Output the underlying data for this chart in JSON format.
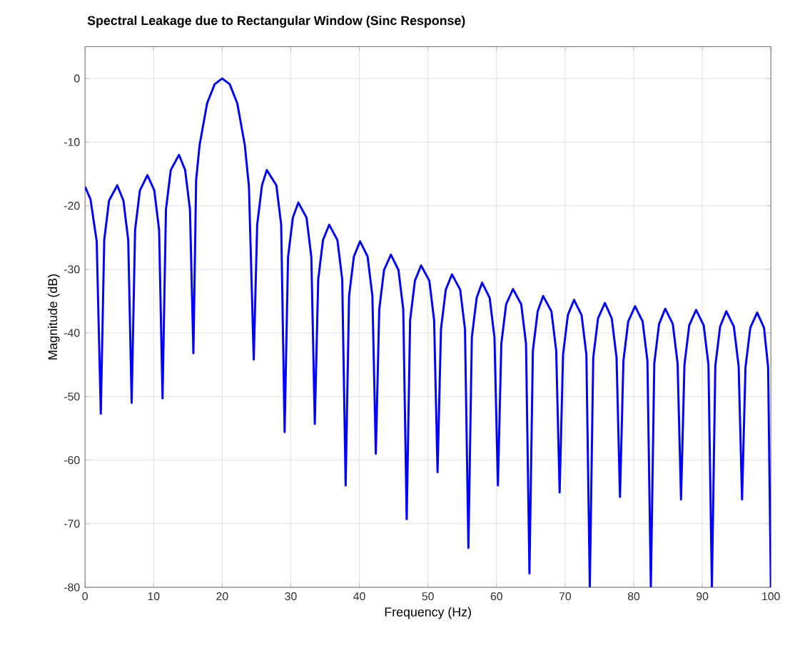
{
  "chart_data": {
    "type": "line",
    "title": "Spectral Leakage due to Rectangular Window (Sinc Response)",
    "xlabel": "Frequency (Hz)",
    "ylabel": "Magnitude (dB)",
    "xlim": [
      0,
      100
    ],
    "ylim": [
      -80,
      5
    ],
    "xticks": [
      0,
      10,
      20,
      30,
      40,
      50,
      60,
      70,
      80,
      90,
      100
    ],
    "yticks": [
      -80,
      -70,
      -60,
      -50,
      -40,
      -30,
      -20,
      -10,
      0
    ],
    "grid": true,
    "line_style": "solid",
    "series": [
      {
        "color": "#0000ff",
        "x": [
          0,
          0.8,
          1.7,
          2.3,
          2.8,
          3.5,
          4.7,
          5.6,
          6.3,
          6.8,
          7.3,
          8.0,
          9.1,
          10.1,
          10.8,
          11.3,
          11.8,
          12.5,
          13.7,
          14.6,
          15.3,
          15.8,
          16.2,
          16.7,
          17.8,
          18.9,
          20,
          21.1,
          22.2,
          23.3,
          23.9,
          24.6,
          25.1,
          25.8,
          26.5,
          27.9,
          28.6,
          29.1,
          29.6,
          30.3,
          31.1,
          32.3,
          33.0,
          33.5,
          34.0,
          34.7,
          35.6,
          36.8,
          37.5,
          38,
          38.5,
          39.2,
          40.1,
          41.2,
          41.9,
          42.4,
          42.9,
          43.6,
          44.6,
          45.7,
          46.4,
          46.9,
          47.4,
          48.1,
          49.0,
          50.2,
          50.9,
          51.4,
          51.9,
          52.6,
          53.5,
          54.7,
          55.4,
          55.9,
          56.4,
          57.1,
          57.9,
          59.0,
          59.7,
          60.2,
          60.7,
          61.4,
          62.4,
          63.6,
          64.3,
          64.8,
          65.3,
          66.0,
          66.8,
          68.0,
          68.7,
          69.2,
          69.7,
          70.4,
          71.3,
          72.4,
          73.1,
          73.6,
          74.1,
          74.8,
          75.8,
          76.8,
          77.5,
          78,
          78.5,
          79.2,
          80.2,
          81.3,
          82.0,
          82.5,
          83.0,
          83.7,
          84.6,
          85.7,
          86.4,
          86.9,
          87.4,
          88.1,
          89.1,
          90.2,
          90.9,
          91.4,
          91.9,
          92.6,
          93.5,
          94.6,
          95.3,
          95.8,
          96.3,
          97.0,
          98.0,
          99.0,
          99.6,
          100
        ],
        "values": [
          -17,
          -19,
          -25.6,
          -52.7,
          -25.4,
          -19.2,
          -16.8,
          -19.2,
          -25.4,
          -51,
          -23.8,
          -17.6,
          -15.2,
          -17.6,
          -23.8,
          -50.3,
          -20.6,
          -14.4,
          -12,
          -14.4,
          -20.6,
          -43.2,
          -16,
          -10.5,
          -3.9,
          -0.9,
          0,
          -0.9,
          -3.9,
          -10.5,
          -17,
          -44.2,
          -23,
          -16.8,
          -14.4,
          -16.8,
          -23,
          -55.6,
          -28.1,
          -21.9,
          -19.5,
          -21.9,
          -28.1,
          -54.3,
          -31.6,
          -25.4,
          -23,
          -25.4,
          -31.6,
          -64,
          -34.2,
          -28,
          -25.6,
          -28,
          -34.2,
          -59,
          -36.3,
          -30.1,
          -27.7,
          -30.1,
          -36.3,
          -69.3,
          -38,
          -31.8,
          -29.4,
          -31.8,
          -38,
          -61.9,
          -39.4,
          -33.2,
          -30.8,
          -33.2,
          -39.4,
          -73.8,
          -40.7,
          -34.5,
          -32.1,
          -34.5,
          -40.7,
          -64,
          -41.7,
          -35.5,
          -33.1,
          -35.5,
          -41.7,
          -77.8,
          -42.8,
          -36.6,
          -34.2,
          -36.6,
          -42.8,
          -65.1,
          -43.4,
          -37.2,
          -34.8,
          -37.2,
          -43.4,
          -80,
          -43.9,
          -37.7,
          -35.3,
          -37.7,
          -43.9,
          -65.8,
          -44.4,
          -38.2,
          -35.8,
          -38.2,
          -44.4,
          -80,
          -44.8,
          -38.6,
          -36.2,
          -38.6,
          -44.8,
          -66.2,
          -45,
          -38.8,
          -36.4,
          -38.8,
          -45,
          -80,
          -45.2,
          -39,
          -36.6,
          -39,
          -45.2,
          -66.2,
          -45.4,
          -39.2,
          -36.8,
          -39.2,
          -45.4,
          -80
        ]
      }
    ]
  }
}
